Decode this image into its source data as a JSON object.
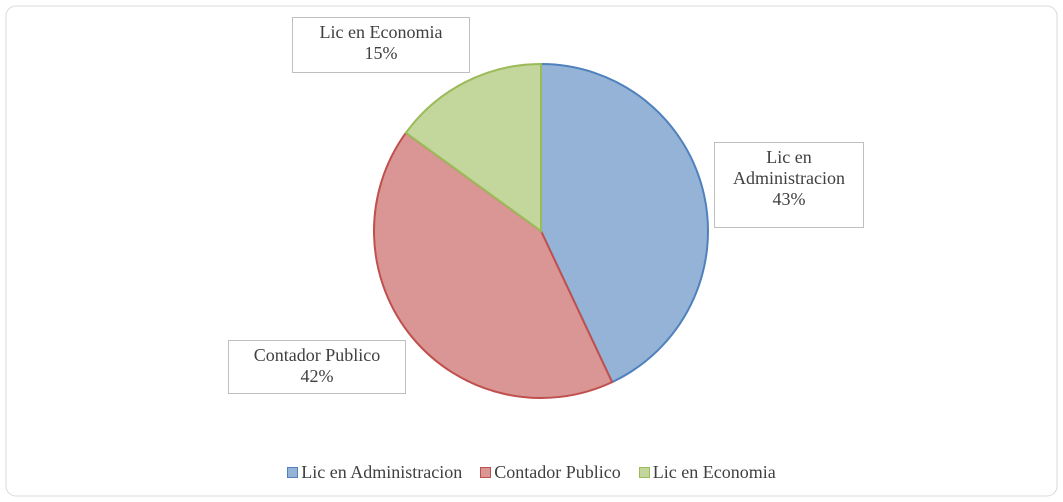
{
  "chart_data": {
    "type": "pie",
    "categories": [
      "Lic en Administracion",
      "Contador Publico",
      "Lic en Economia"
    ],
    "values": [
      43,
      42,
      15
    ],
    "value_labels": [
      "43%",
      "42%",
      "15%"
    ],
    "colors": [
      "#95b3d7",
      "#d99694",
      "#c3d69b"
    ],
    "edge_colors": [
      "#4f81bd",
      "#c0504d",
      "#9bbb59"
    ],
    "legend": "bottom"
  }
}
